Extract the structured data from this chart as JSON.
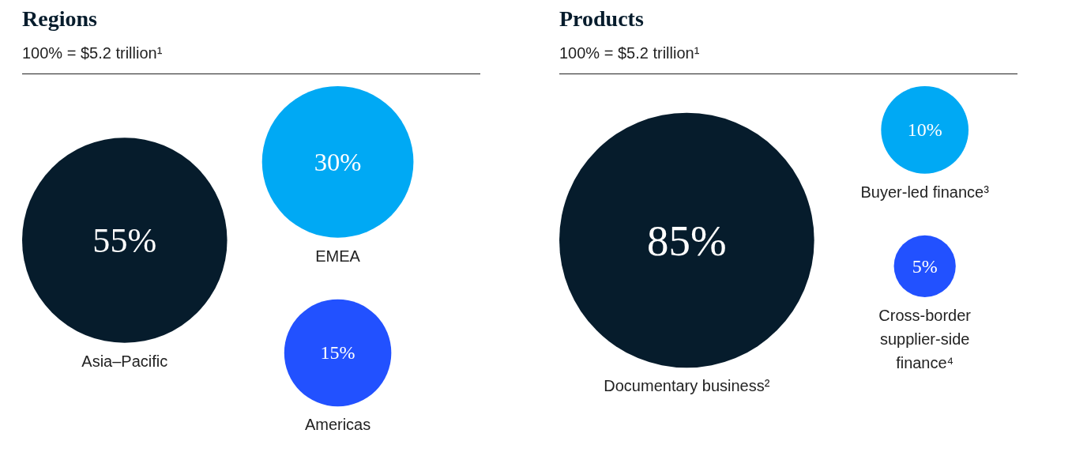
{
  "chart_data": [
    {
      "type": "other",
      "title": "Regions",
      "subtitle": "100% = $5.2 trillion¹",
      "categories": [
        "Asia–Pacific",
        "EMEA",
        "Americas"
      ],
      "values": [
        55,
        30,
        15
      ],
      "value_labels": [
        "55%",
        "30%",
        "15%"
      ],
      "colors": [
        "#061c2c",
        "#00a9f4",
        "#2251ff"
      ]
    },
    {
      "type": "other",
      "title": "Products",
      "subtitle": "100% = $5.2 trillion¹",
      "categories": [
        "Documentary business²",
        "Buyer-led finance³",
        "Cross-border supplier-side finance⁴"
      ],
      "values": [
        85,
        10,
        5
      ],
      "value_labels": [
        "85%",
        "10%",
        "5%"
      ],
      "colors": [
        "#061c2c",
        "#00a9f4",
        "#2251ff"
      ]
    }
  ]
}
